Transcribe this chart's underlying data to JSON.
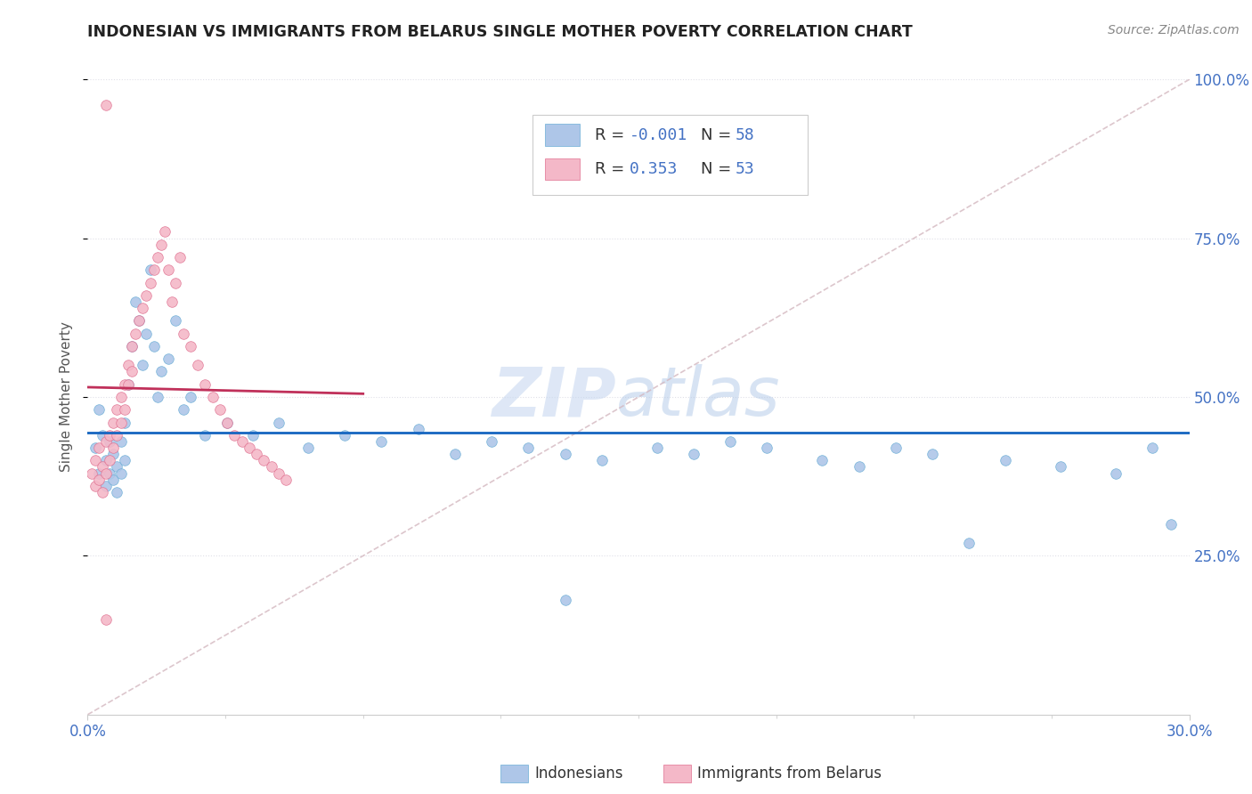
{
  "title": "INDONESIAN VS IMMIGRANTS FROM BELARUS SINGLE MOTHER POVERTY CORRELATION CHART",
  "source_text": "Source: ZipAtlas.com",
  "ylabel": "Single Mother Poverty",
  "xlim": [
    0.0,
    0.3
  ],
  "ylim": [
    0.0,
    1.0
  ],
  "watermark_zip": "ZIP",
  "watermark_atlas": "atlas",
  "legend_r1": "R = ",
  "legend_v1": "-0.001",
  "legend_n1_label": "N = ",
  "legend_n1": "58",
  "legend_r2": "R =  ",
  "legend_v2": "0.353",
  "legend_n2_label": "N = ",
  "legend_n2": "53",
  "indonesian_color": "#aec6e8",
  "indonesian_edge_color": "#6baed6",
  "belarus_color": "#f4b8c8",
  "belarus_edge_color": "#e07090",
  "indonesian_trend_color": "#1565c0",
  "belarus_trend_color": "#c0305a",
  "ref_line_color": "#d0b0b8",
  "grid_color": "#e0e0e8",
  "tick_color_blue": "#4472c4",
  "background_color": "#ffffff",
  "indonesian_x": [
    0.002,
    0.003,
    0.003,
    0.004,
    0.005,
    0.005,
    0.006,
    0.006,
    0.007,
    0.007,
    0.008,
    0.008,
    0.009,
    0.009,
    0.01,
    0.01,
    0.011,
    0.012,
    0.013,
    0.014,
    0.015,
    0.016,
    0.017,
    0.018,
    0.019,
    0.02,
    0.022,
    0.024,
    0.026,
    0.028,
    0.032,
    0.038,
    0.045,
    0.052,
    0.06,
    0.07,
    0.08,
    0.09,
    0.1,
    0.11,
    0.12,
    0.13,
    0.14,
    0.155,
    0.165,
    0.175,
    0.185,
    0.2,
    0.21,
    0.22,
    0.23,
    0.25,
    0.265,
    0.28,
    0.29,
    0.295,
    0.24,
    0.13
  ],
  "indonesian_y": [
    0.42,
    0.48,
    0.38,
    0.44,
    0.4,
    0.36,
    0.43,
    0.38,
    0.41,
    0.37,
    0.39,
    0.35,
    0.43,
    0.38,
    0.46,
    0.4,
    0.52,
    0.58,
    0.65,
    0.62,
    0.55,
    0.6,
    0.7,
    0.58,
    0.5,
    0.54,
    0.56,
    0.62,
    0.48,
    0.5,
    0.44,
    0.46,
    0.44,
    0.46,
    0.42,
    0.44,
    0.43,
    0.45,
    0.41,
    0.43,
    0.42,
    0.41,
    0.4,
    0.42,
    0.41,
    0.43,
    0.42,
    0.4,
    0.39,
    0.42,
    0.41,
    0.4,
    0.39,
    0.38,
    0.42,
    0.3,
    0.27,
    0.18
  ],
  "belarus_x": [
    0.001,
    0.002,
    0.002,
    0.003,
    0.003,
    0.004,
    0.004,
    0.005,
    0.005,
    0.005,
    0.006,
    0.006,
    0.007,
    0.007,
    0.008,
    0.008,
    0.009,
    0.009,
    0.01,
    0.01,
    0.011,
    0.011,
    0.012,
    0.012,
    0.013,
    0.014,
    0.015,
    0.016,
    0.017,
    0.018,
    0.019,
    0.02,
    0.021,
    0.022,
    0.023,
    0.024,
    0.025,
    0.026,
    0.028,
    0.03,
    0.032,
    0.034,
    0.036,
    0.038,
    0.04,
    0.042,
    0.044,
    0.046,
    0.048,
    0.05,
    0.052,
    0.054,
    0.005
  ],
  "belarus_y": [
    0.38,
    0.4,
    0.36,
    0.42,
    0.37,
    0.39,
    0.35,
    0.43,
    0.38,
    0.96,
    0.44,
    0.4,
    0.46,
    0.42,
    0.48,
    0.44,
    0.5,
    0.46,
    0.52,
    0.48,
    0.55,
    0.52,
    0.58,
    0.54,
    0.6,
    0.62,
    0.64,
    0.66,
    0.68,
    0.7,
    0.72,
    0.74,
    0.76,
    0.7,
    0.65,
    0.68,
    0.72,
    0.6,
    0.58,
    0.55,
    0.52,
    0.5,
    0.48,
    0.46,
    0.44,
    0.43,
    0.42,
    0.41,
    0.4,
    0.39,
    0.38,
    0.37,
    0.15
  ]
}
